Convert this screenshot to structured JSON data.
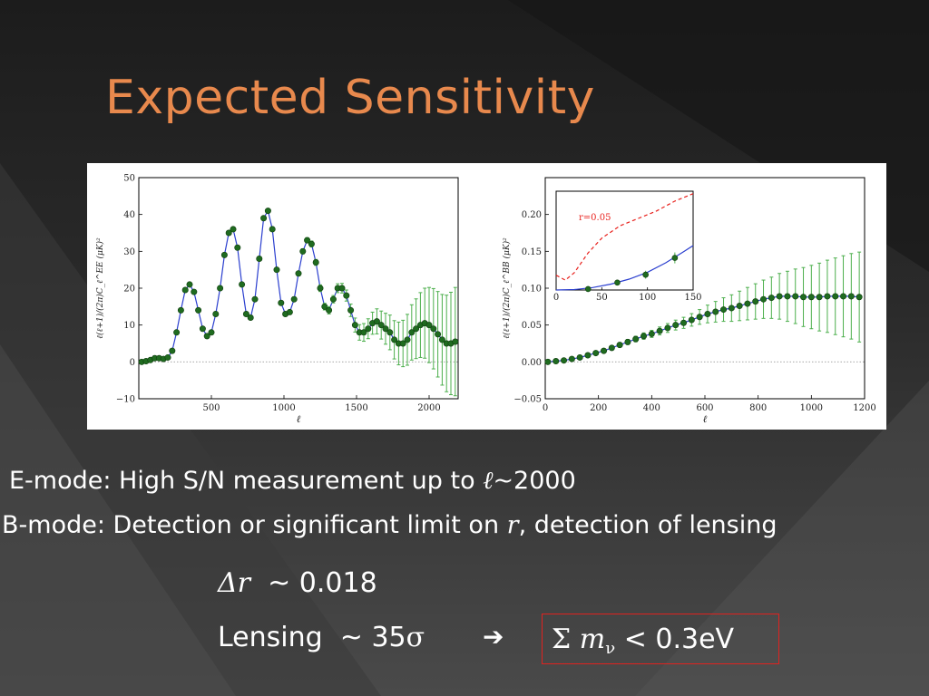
{
  "slide": {
    "title": "Expected Sensitivity",
    "bullet1_prefix": "E-mode: High S/N measurement up to ",
    "bullet1_var": "ℓ",
    "bullet1_suffix": "~2000",
    "bullet2_prefix": "B-mode: Detection or significant limit on ",
    "bullet2_var": "r",
    "bullet2_suffix": ", detection of lensing",
    "delta_r_symbol": "Δr",
    "delta_r_value": "~ 0.018",
    "lensing_label": "Lensing",
    "lensing_value": "~ 35",
    "lensing_sigma": "σ",
    "arrow": "➔",
    "sum_symbol": "Σ",
    "mnu_var": "m",
    "mnu_sub": "ν",
    "mnu_value": "< 0.3eV",
    "colors": {
      "title": "#e8894d",
      "box": "#e0221f",
      "theory": "#2b3fcf",
      "points": "#1f6b1f",
      "errorbars": "#4caf4c",
      "r_curve": "#e8211d"
    }
  },
  "chart_data": [
    {
      "type": "scatter",
      "title": "",
      "xlabel": "ℓ",
      "ylabel": "ℓ(ℓ+1)/(2π)C_ℓ^EE (μK)²",
      "xlim": [
        0,
        2200
      ],
      "ylim": [
        -10,
        50
      ],
      "xticks": [
        500,
        1000,
        1500,
        2000
      ],
      "yticks": [
        -10,
        0,
        10,
        20,
        30,
        40,
        50
      ],
      "zero_line": true,
      "series": [
        {
          "x": [
            20,
            50,
            80,
            110,
            140,
            170,
            200,
            230,
            260,
            290,
            320,
            350,
            380,
            410,
            440,
            470,
            500,
            530,
            560,
            590,
            620,
            650,
            680,
            710,
            740,
            770,
            800,
            830,
            860,
            890,
            920,
            950,
            980,
            1010,
            1040,
            1070,
            1100,
            1130,
            1160,
            1190,
            1220,
            1250,
            1280,
            1310,
            1340,
            1370,
            1400,
            1430,
            1460,
            1490,
            1520,
            1550,
            1580,
            1610,
            1640,
            1670,
            1700,
            1730,
            1760,
            1790,
            1820,
            1850,
            1880,
            1910,
            1940,
            1970,
            2000,
            2030,
            2060,
            2090,
            2120,
            2150,
            2180
          ],
          "y": [
            0,
            0.2,
            0.5,
            1,
            1,
            0.8,
            1.2,
            3,
            8,
            14,
            19.5,
            21,
            19,
            14,
            9,
            7,
            8,
            13,
            20,
            29,
            35,
            36,
            31,
            21,
            13,
            12,
            17,
            28,
            39,
            41,
            36,
            25,
            16,
            13,
            13.5,
            17,
            24,
            30,
            33,
            32,
            27,
            20,
            15,
            14,
            17,
            20,
            20,
            18,
            14,
            10,
            8,
            8,
            9,
            10.5,
            11,
            10,
            9,
            8,
            6,
            5,
            5,
            6,
            8,
            9,
            10,
            10.5,
            10,
            9,
            7.5,
            6,
            5,
            5,
            5.5
          ],
          "errors": [
            0.2,
            0.2,
            0.2,
            0.2,
            0.2,
            0.2,
            0.2,
            0.2,
            0.3,
            0.3,
            0.3,
            0.3,
            0.3,
            0.3,
            0.3,
            0.3,
            0.3,
            0.3,
            0.3,
            0.4,
            0.4,
            0.4,
            0.4,
            0.4,
            0.4,
            0.4,
            0.4,
            0.5,
            0.5,
            0.5,
            0.5,
            0.5,
            0.5,
            0.5,
            0.5,
            0.6,
            0.6,
            0.7,
            0.7,
            0.8,
            0.8,
            0.9,
            0.9,
            1,
            1,
            1.2,
            1.3,
            1.5,
            1.7,
            1.9,
            2.1,
            2.4,
            2.7,
            3,
            3.4,
            3.8,
            4.2,
            4.7,
            5.2,
            5.8,
            6.3,
            6.9,
            7.5,
            8.1,
            8.8,
            9.5,
            10.2,
            10.9,
            11.6,
            12.3,
            13.1,
            13.9,
            14.7
          ],
          "theory": "smooth curve through points"
        }
      ]
    },
    {
      "type": "scatter",
      "title": "",
      "xlabel": "ℓ",
      "ylabel": "ℓ(ℓ+1)/(2π)C_ℓ^BB (μK)²",
      "xlim": [
        0,
        1200
      ],
      "ylim": [
        -0.05,
        0.25
      ],
      "xticks": [
        0,
        200,
        400,
        600,
        800,
        1000,
        1200
      ],
      "yticks": [
        -0.05,
        0.0,
        0.05,
        0.1,
        0.15,
        0.2
      ],
      "zero_line": true,
      "series": [
        {
          "x": [
            10,
            40,
            70,
            100,
            130,
            160,
            190,
            220,
            250,
            280,
            310,
            340,
            370,
            400,
            430,
            460,
            490,
            520,
            550,
            580,
            610,
            640,
            670,
            700,
            730,
            760,
            790,
            820,
            850,
            880,
            910,
            940,
            970,
            1000,
            1030,
            1060,
            1090,
            1120,
            1150,
            1180
          ],
          "y": [
            0.0,
            0.001,
            0.002,
            0.004,
            0.006,
            0.009,
            0.012,
            0.015,
            0.019,
            0.023,
            0.027,
            0.031,
            0.035,
            0.038,
            0.042,
            0.046,
            0.05,
            0.053,
            0.057,
            0.061,
            0.065,
            0.068,
            0.071,
            0.073,
            0.076,
            0.079,
            0.082,
            0.085,
            0.087,
            0.089,
            0.089,
            0.089,
            0.088,
            0.088,
            0.088,
            0.089,
            0.089,
            0.089,
            0.089,
            0.088
          ],
          "errors": [
            0.0008,
            0.001,
            0.0012,
            0.0014,
            0.0016,
            0.0018,
            0.002,
            0.0023,
            0.0026,
            0.003,
            0.0034,
            0.0038,
            0.0043,
            0.0048,
            0.0054,
            0.006,
            0.0067,
            0.0075,
            0.0085,
            0.01,
            0.012,
            0.014,
            0.016,
            0.018,
            0.02,
            0.022,
            0.024,
            0.026,
            0.028,
            0.031,
            0.034,
            0.037,
            0.04,
            0.043,
            0.046,
            0.049,
            0.052,
            0.055,
            0.058,
            0.061
          ]
        }
      ],
      "inset": {
        "type": "line",
        "xlim": [
          0,
          150
        ],
        "ylim": [
          0,
          0.2
        ],
        "xticks": [
          0,
          50,
          100,
          150
        ],
        "annotation": "r=0.05",
        "points": {
          "x": [
            35,
            67,
            98,
            130
          ],
          "y": [
            0.002,
            0.015,
            0.031,
            0.065
          ],
          "errors": [
            0.003,
            0.005,
            0.008,
            0.011
          ]
        },
        "theory_r0": {
          "x": [
            0,
            20,
            40,
            60,
            80,
            100,
            120,
            140,
            150
          ],
          "y": [
            0.0,
            0.001,
            0.005,
            0.012,
            0.022,
            0.036,
            0.055,
            0.078,
            0.09
          ]
        },
        "r_0.05": {
          "x": [
            0,
            10,
            20,
            35,
            50,
            70,
            90,
            110,
            130,
            150
          ],
          "y": [
            0.03,
            0.02,
            0.035,
            0.075,
            0.105,
            0.13,
            0.145,
            0.16,
            0.18,
            0.195
          ]
        }
      }
    }
  ]
}
